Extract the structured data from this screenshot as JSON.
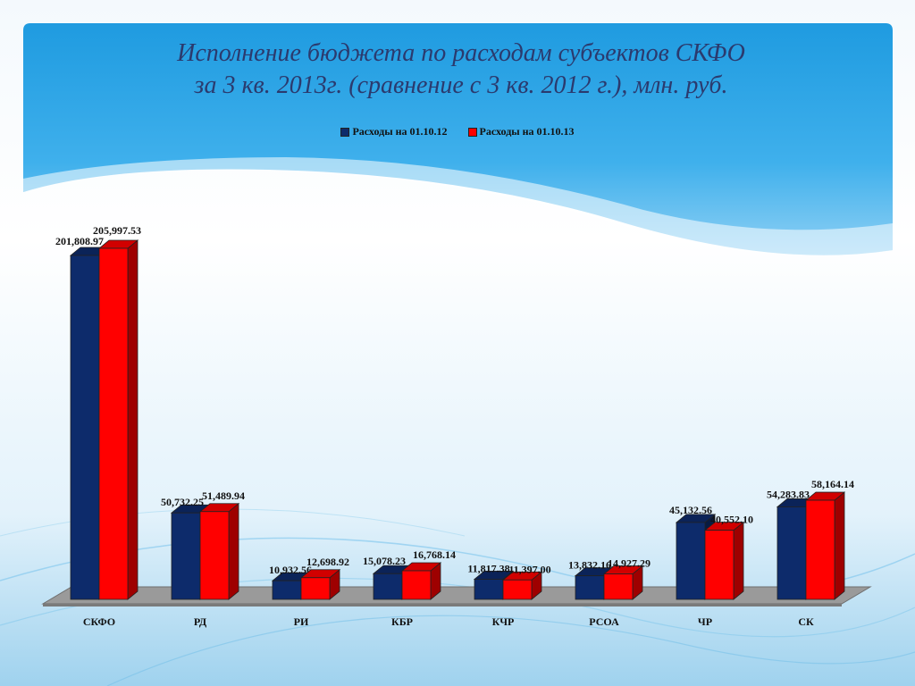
{
  "slide": {
    "title_line1": "Исполнение бюджета по расходам субъектов СКФО",
    "title_line2": "за 3 кв. 2013г. (сравнение с 3 кв. 2012 г.), млн. руб."
  },
  "chart_data": {
    "type": "bar",
    "categories": [
      "СКФО",
      "РД",
      "РИ",
      "КБР",
      "КЧР",
      "РСОА",
      "ЧР",
      "СК"
    ],
    "series": [
      {
        "name": "Расходы на 01.10.12",
        "color": "#0d2b6b",
        "values": [
          201808.97,
          50732.25,
          10932.56,
          15078.23,
          11817.38,
          13832.16,
          45132.56,
          54283.83
        ],
        "labels": [
          "201,808.97",
          "50,732.25",
          "10,932.56",
          "15,078.23",
          "11,817.38",
          "13,832.16",
          "45,132.56",
          "54,283.83"
        ]
      },
      {
        "name": "Расходы на 01.10.13",
        "color": "#ff0000",
        "values": [
          205997.53,
          51489.94,
          12698.92,
          16768.14,
          11397.0,
          14927.29,
          40552.1,
          58164.14
        ],
        "labels": [
          "205,997.53",
          "51,489.94",
          "12,698.92",
          "16,768.14",
          "11,397.00",
          "14,927.29",
          "40,552.10",
          "58,164.14"
        ]
      }
    ],
    "title": "Исполнение бюджета по расходам субъектов СКФО за 3 кв. 2013г. (сравнение с 3 кв. 2012 г.), млн. руб.",
    "legend_position": "top",
    "grid": false,
    "style": "3d-column"
  }
}
